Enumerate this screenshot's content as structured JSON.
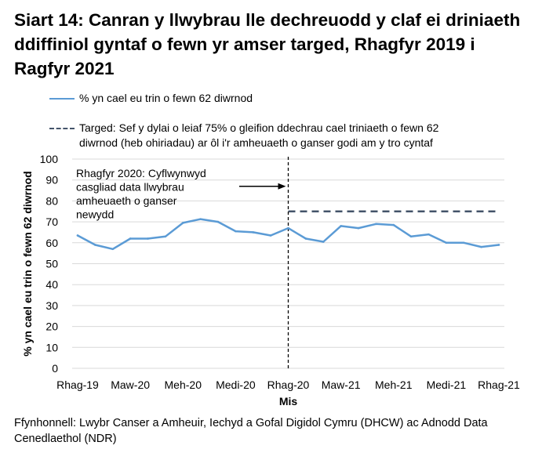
{
  "title": "Siart 14:  Canran y llwybrau lle dechreuodd y claf ei driniaeth ddiffiniol gyntaf o fewn yr amser targed, Rhagfyr 2019 i Ragfyr 2021",
  "source": "Ffynhonnell: Lwybr Canser a Amheuir, Iechyd a Gofal Digidol Cymru (DHCW) ac Adnodd Data Cenedlaethol (NDR)",
  "colors": {
    "series": "#5b9bd5",
    "target": "#44546a",
    "annotation": "#000000",
    "grid": "#d9d9d9"
  },
  "legend": {
    "series_label": "% yn cael eu trin o fewn 62 diwrnod",
    "target_label_line1": "Targed: Sef y dylai o leiaf 75% o gleifion ddechrau cael triniaeth o fewn 62",
    "target_label_line2": "diwrnod (heb ohiriadau) ar ôl i'r amheuaeth o ganser godi am y tro cyntaf"
  },
  "chart_data": {
    "type": "line",
    "title": "Siart 14:  Canran y llwybrau lle dechreuodd y claf ei driniaeth ddiffiniol gyntaf o fewn yr amser targed, Rhagfyr 2019 i Ragfyr 2021",
    "xlabel": "Mis",
    "ylabel": "% yn cael eu trin o fewn 62 diwrnod",
    "ylim": [
      0,
      100
    ],
    "yticks": [
      0,
      10,
      20,
      30,
      40,
      50,
      60,
      70,
      80,
      90,
      100
    ],
    "grid": true,
    "x_count": 25,
    "tick_labels": [
      "Rhag-19",
      "Maw-20",
      "Meh-20",
      "Medi-20",
      "Rhag-20",
      "Maw-21",
      "Meh-21",
      "Medi-21",
      "Rhag-21"
    ],
    "tick_indices": [
      0,
      3,
      6,
      9,
      12,
      15,
      18,
      21,
      24
    ],
    "series": [
      {
        "name": "% yn cael eu trin o fewn 62 diwrnod",
        "values": [
          63.5,
          59,
          57,
          62,
          62,
          63,
          69.5,
          71.3,
          70,
          65.5,
          65,
          63.5,
          67,
          62,
          60.5,
          68,
          67,
          69,
          68.5,
          63,
          64,
          60,
          60,
          58,
          59
        ]
      },
      {
        "name": "Targed: Sef y dylai o leiaf 75% o gleifion ddechrau cael triniaeth o fewn 62 diwrnod (heb ohiriadau) ar ôl i'r amheuaeth o ganser godi am y tro cyntaf",
        "style": "dashed",
        "start_index": 12,
        "end_index": 24,
        "value": 75
      }
    ],
    "annotation": {
      "line1": "Rhagfyr 2020: Cyflwynwyd",
      "line2": "casgliad data llwybrau",
      "line3": "amheuaeth o ganser",
      "line4": "newydd",
      "x_index": 12,
      "arrow_y_value": 87
    }
  }
}
